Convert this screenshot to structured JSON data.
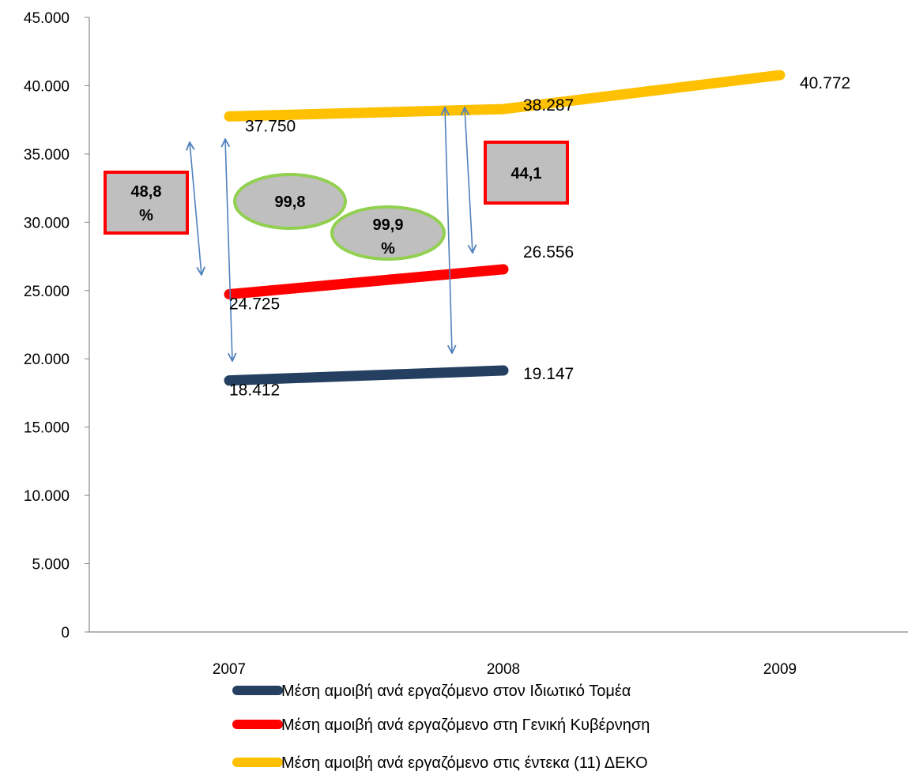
{
  "chart_data": {
    "type": "line",
    "categories": [
      "2007",
      "2008",
      "2009"
    ],
    "ylim": [
      0,
      45000
    ],
    "yticks": [
      0,
      5000,
      10000,
      15000,
      20000,
      25000,
      30000,
      35000,
      40000,
      45000
    ],
    "ytick_labels": [
      "0",
      "5.000",
      "10.000",
      "15.000",
      "20.000",
      "25.000",
      "30.000",
      "35.000",
      "40.000",
      "45.000"
    ],
    "grid": false,
    "legend_position": "bottom",
    "series": [
      {
        "name": "Μέση αμοιβή ανά εργαζόμενο στον Ιδιωτικό Τομέα",
        "color": "#243F60",
        "values": [
          18412,
          19147,
          null
        ],
        "labels": [
          "18.412",
          "19.147",
          ""
        ]
      },
      {
        "name": "Μέση αμοιβή ανά εργαζόμενο στη Γενική Κυβέρνηση",
        "color": "#FF0000",
        "values": [
          24725,
          26556,
          null
        ],
        "labels": [
          "24.725",
          "26.556",
          ""
        ]
      },
      {
        "name": "Μέση αμοιβή ανά εργαζόμενο στις έντεκα (11) ΔΕΚΟ",
        "color": "#FFC000",
        "values": [
          37750,
          38287,
          40772
        ],
        "labels": [
          "37.750",
          "38.287",
          "40.772"
        ]
      }
    ],
    "annotations": {
      "boxes": [
        {
          "id": "box-48-8",
          "line1": "48,8",
          "line2": "%"
        },
        {
          "id": "box-44-1",
          "line1": "44,1",
          "line2": ""
        }
      ],
      "ellipses": [
        {
          "id": "ellipse-99-8",
          "line1": "99,8",
          "line2": ""
        },
        {
          "id": "ellipse-99-9",
          "line1": "99,9",
          "line2": "%"
        }
      ],
      "arrow_color": "#4F81BD",
      "box_fill": "#BFBFBF",
      "box_border": "#FF0000",
      "ellipse_border": "#92D050"
    }
  }
}
